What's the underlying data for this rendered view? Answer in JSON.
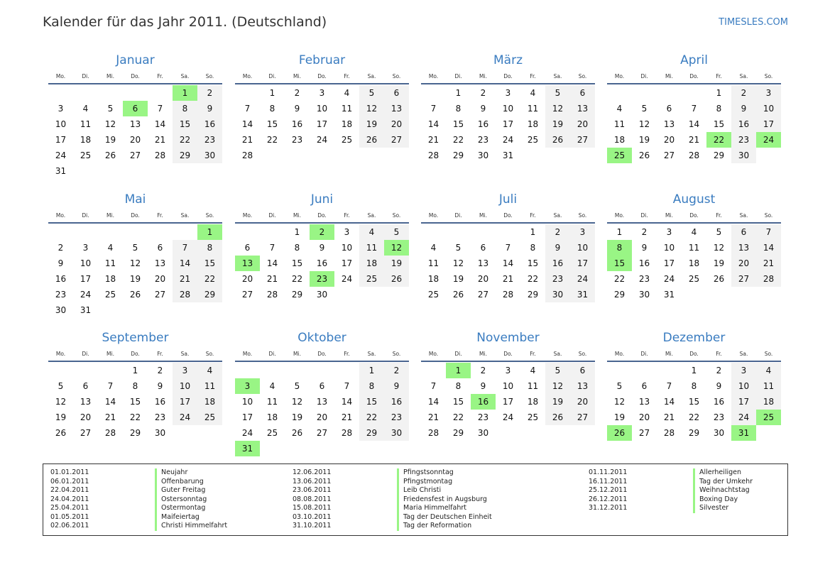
{
  "header": {
    "title": "Kalender für das Jahr 2011. (Deutschland)",
    "site": "TIMESLES.COM"
  },
  "weekdays": [
    "Mo.",
    "Di.",
    "Mi.",
    "Do.",
    "Fr.",
    "Sa.",
    "So."
  ],
  "colors": {
    "accent": "#3a7cc0",
    "holiday": "#99f585",
    "weekend": "#f2f2f2"
  },
  "months": [
    {
      "name": "Januar",
      "offset": 5,
      "days": 31,
      "holidays": [
        1,
        6
      ]
    },
    {
      "name": "Februar",
      "offset": 1,
      "days": 28,
      "holidays": []
    },
    {
      "name": "März",
      "offset": 1,
      "days": 31,
      "holidays": []
    },
    {
      "name": "April",
      "offset": 4,
      "days": 30,
      "holidays": [
        22,
        24,
        25
      ]
    },
    {
      "name": "Mai",
      "offset": 6,
      "days": 31,
      "holidays": [
        1
      ]
    },
    {
      "name": "Juni",
      "offset": 2,
      "days": 30,
      "holidays": [
        2,
        12,
        13,
        23
      ]
    },
    {
      "name": "Juli",
      "offset": 4,
      "days": 31,
      "holidays": []
    },
    {
      "name": "August",
      "offset": 0,
      "days": 31,
      "holidays": [
        8,
        15
      ]
    },
    {
      "name": "September",
      "offset": 3,
      "days": 30,
      "holidays": []
    },
    {
      "name": "Oktober",
      "offset": 5,
      "days": 31,
      "holidays": [
        3,
        31
      ]
    },
    {
      "name": "November",
      "offset": 1,
      "days": 30,
      "holidays": [
        1,
        16
      ]
    },
    {
      "name": "Dezember",
      "offset": 3,
      "days": 31,
      "holidays": [
        25,
        26,
        31
      ]
    }
  ],
  "legend": [
    [
      [
        "01.01.2011",
        "Neujahr"
      ],
      [
        "06.01.2011",
        "Offenbarung"
      ],
      [
        "22.04.2011",
        "Guter Freitag"
      ],
      [
        "24.04.2011",
        "Ostersonntag"
      ],
      [
        "25.04.2011",
        "Ostermontag"
      ],
      [
        "01.05.2011",
        "Maifeiertag"
      ],
      [
        "02.06.2011",
        "Christi Himmelfahrt"
      ]
    ],
    [
      [
        "12.06.2011",
        "Pfingstsonntag"
      ],
      [
        "13.06.2011",
        "Pfingstmontag"
      ],
      [
        "23.06.2011",
        "Leib Christi"
      ],
      [
        "08.08.2011",
        "Friedensfest in Augsburg"
      ],
      [
        "15.08.2011",
        "Maria Himmelfahrt"
      ],
      [
        "03.10.2011",
        "Tag der Deutschen Einheit"
      ],
      [
        "31.10.2011",
        "Tag der Reformation"
      ]
    ],
    [
      [
        "01.11.2011",
        "Allerheiligen"
      ],
      [
        "16.11.2011",
        "Tag der Umkehr"
      ],
      [
        "25.12.2011",
        "Weihnachtstag"
      ],
      [
        "26.12.2011",
        "Boxing Day"
      ],
      [
        "31.12.2011",
        "Silvester"
      ]
    ]
  ]
}
